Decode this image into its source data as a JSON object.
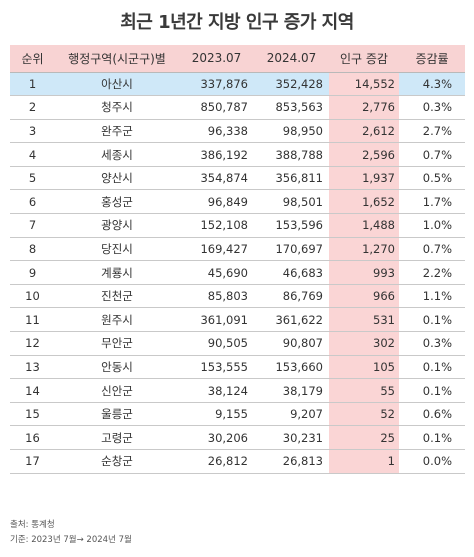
{
  "title": "최근 1년간 지방 인구 증가 지역",
  "headers": [
    "순위",
    "행정구역(시군구)별",
    "2023.07",
    "2024.07",
    "인구 증감",
    "증감률"
  ],
  "rows": [
    {
      "rank": "1",
      "region": "아산시",
      "y2023": "337,876",
      "y2024": "352,428",
      "change": "14,552",
      "rate": "4.3%"
    },
    {
      "rank": "2",
      "region": "청주시",
      "y2023": "850,787",
      "y2024": "853,563",
      "change": "2,776",
      "rate": "0.3%"
    },
    {
      "rank": "3",
      "region": "완주군",
      "y2023": "96,338",
      "y2024": "98,950",
      "change": "2,612",
      "rate": "2.7%"
    },
    {
      "rank": "4",
      "region": "세종시",
      "y2023": "386,192",
      "y2024": "388,788",
      "change": "2,596",
      "rate": "0.7%"
    },
    {
      "rank": "5",
      "region": "양산시",
      "y2023": "354,874",
      "y2024": "356,811",
      "change": "1,937",
      "rate": "0.5%"
    },
    {
      "rank": "6",
      "region": "홍성군",
      "y2023": "96,849",
      "y2024": "98,501",
      "change": "1,652",
      "rate": "1.7%"
    },
    {
      "rank": "7",
      "region": "광양시",
      "y2023": "152,108",
      "y2024": "153,596",
      "change": "1,488",
      "rate": "1.0%"
    },
    {
      "rank": "8",
      "region": "당진시",
      "y2023": "169,427",
      "y2024": "170,697",
      "change": "1,270",
      "rate": "0.7%"
    },
    {
      "rank": "9",
      "region": "계룡시",
      "y2023": "45,690",
      "y2024": "46,683",
      "change": "993",
      "rate": "2.2%"
    },
    {
      "rank": "10",
      "region": "진천군",
      "y2023": "85,803",
      "y2024": "86,769",
      "change": "966",
      "rate": "1.1%"
    },
    {
      "rank": "11",
      "region": "원주시",
      "y2023": "361,091",
      "y2024": "361,622",
      "change": "531",
      "rate": "0.1%"
    },
    {
      "rank": "12",
      "region": "무안군",
      "y2023": "90,505",
      "y2024": "90,807",
      "change": "302",
      "rate": "0.3%"
    },
    {
      "rank": "13",
      "region": "안동시",
      "y2023": "153,555",
      "y2024": "153,660",
      "change": "105",
      "rate": "0.1%"
    },
    {
      "rank": "14",
      "region": "신안군",
      "y2023": "38,124",
      "y2024": "38,179",
      "change": "55",
      "rate": "0.1%"
    },
    {
      "rank": "15",
      "region": "울릉군",
      "y2023": "9,155",
      "y2024": "9,207",
      "change": "52",
      "rate": "0.6%"
    },
    {
      "rank": "16",
      "region": "고령군",
      "y2023": "30,206",
      "y2024": "30,231",
      "change": "25",
      "rate": "0.1%"
    },
    {
      "rank": "17",
      "region": "순창군",
      "y2023": "26,812",
      "y2024": "26,813",
      "change": "1",
      "rate": "0.0%"
    }
  ],
  "footer": {
    "source": "출처: 통계청",
    "period": "기준: 2023년 7월→ 2024년 7월"
  },
  "colors": {
    "header_bg": "#f8d3d3",
    "highlight_row_bg": "#cfe8f8",
    "change_column_bg": "#fad5d5"
  }
}
